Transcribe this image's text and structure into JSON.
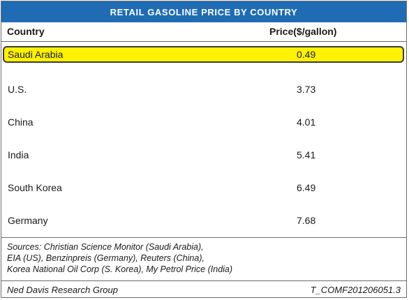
{
  "chart_data": {
    "type": "table",
    "title": "RETAIL GASOLINE PRICE BY COUNTRY",
    "columns": [
      "Country",
      "Price($/gallon)"
    ],
    "rows": [
      {
        "country": "Saudi Arabia",
        "price": "0.49",
        "highlighted": true
      },
      {
        "country": "U.S.",
        "price": "3.73",
        "highlighted": false
      },
      {
        "country": "China",
        "price": "4.01",
        "highlighted": false
      },
      {
        "country": "India",
        "price": "5.41",
        "highlighted": false
      },
      {
        "country": "South Korea",
        "price": "6.49",
        "highlighted": false
      },
      {
        "country": "Germany",
        "price": "7.68",
        "highlighted": false
      }
    ],
    "sources": [
      "Sources: Christian Science Monitor (Saudi Arabia),",
      "EIA (US), Benzinpreis (Germany), Reuters (China),",
      "Korea National Oil Corp (S. Korea), My Petrol Price (India)"
    ],
    "footer_left": "Ned Davis Research Group",
    "footer_right": "T_COMF201206051.3"
  },
  "colors": {
    "title_bar": "#1f6cb5",
    "highlight": "#fff200"
  }
}
